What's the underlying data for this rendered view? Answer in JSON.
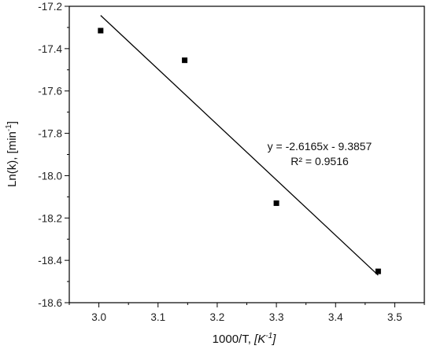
{
  "chart_data": {
    "type": "scatter",
    "xlabel": {
      "main": "1000/T, ",
      "unit": "K",
      "exp": "-1",
      "close": "]"
    },
    "ylabel": {
      "main": "Ln(k), [min",
      "exp": "-1",
      "close": "]"
    },
    "xlim": [
      2.95,
      3.55
    ],
    "ylim": [
      -18.6,
      -17.2
    ],
    "xticks": [
      "3.0",
      "3.1",
      "3.2",
      "3.3",
      "3.4",
      "3.5"
    ],
    "yticks": [
      "-17.2",
      "-17.4",
      "-17.6",
      "-17.8",
      "-18.0",
      "-18.2",
      "-18.4",
      "-18.6"
    ],
    "points": [
      {
        "x": 3.003,
        "y": -17.315
      },
      {
        "x": 3.145,
        "y": -17.455
      },
      {
        "x": 3.3,
        "y": -18.13
      },
      {
        "x": 3.472,
        "y": -18.452
      }
    ],
    "fit": {
      "slope": -2.6165,
      "intercept": -9.3857,
      "x_from": 3.003,
      "x_to": 3.472
    },
    "annotation": {
      "equation": "y = -2.6165x - 9.3857",
      "r2": "R² = 0.9516"
    },
    "grid": false,
    "legend": "none"
  }
}
